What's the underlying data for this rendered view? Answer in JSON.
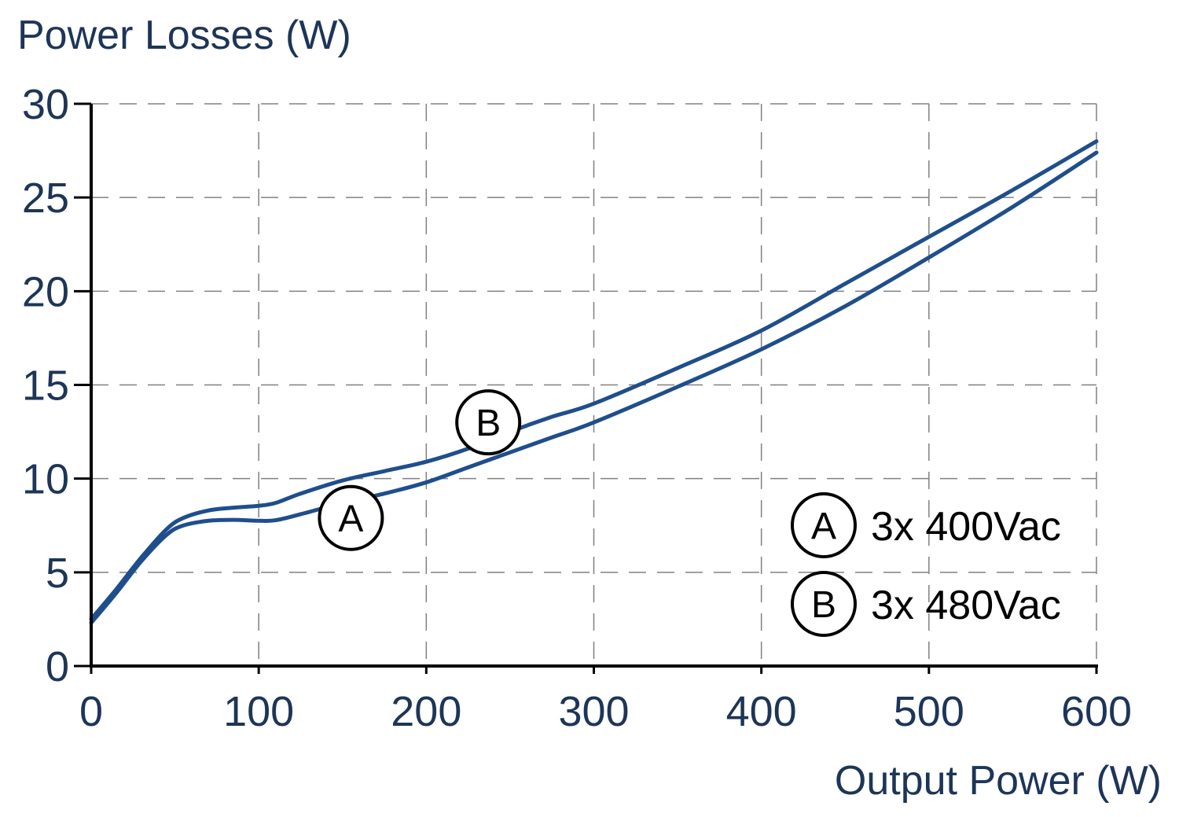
{
  "chart_data": {
    "type": "line",
    "ylabel": "Power Losses (W)",
    "xlabel": "Output Power (W)",
    "xlim": [
      0,
      600
    ],
    "ylim": [
      0,
      30
    ],
    "x_ticks": [
      0,
      100,
      200,
      300,
      400,
      500,
      600
    ],
    "x_tick_labels": [
      "0",
      "100",
      "200",
      "300",
      "400",
      "500",
      "600"
    ],
    "y_ticks": [
      0,
      5,
      10,
      15,
      20,
      25,
      30
    ],
    "y_tick_labels": [
      "0",
      "5",
      "10",
      "15",
      "20",
      "25",
      "30"
    ],
    "grid": true,
    "legend_position": "bottom-right",
    "colors": {
      "line": "#1f4e8c",
      "text": "#1d3557",
      "axis": "#000000",
      "grid": "#808080"
    },
    "series": [
      {
        "name": "3x 400Vac",
        "marker": "A",
        "label_at": [
          155,
          7.9
        ],
        "points": [
          [
            0,
            2.3
          ],
          [
            15,
            3.9
          ],
          [
            30,
            5.6
          ],
          [
            45,
            7.0
          ],
          [
            55,
            7.5
          ],
          [
            70,
            7.75
          ],
          [
            85,
            7.8
          ],
          [
            100,
            7.75
          ],
          [
            110,
            7.78
          ],
          [
            125,
            8.1
          ],
          [
            150,
            8.7
          ],
          [
            175,
            9.2
          ],
          [
            200,
            9.8
          ],
          [
            225,
            10.6
          ],
          [
            250,
            11.4
          ],
          [
            275,
            12.2
          ],
          [
            300,
            13.0
          ],
          [
            350,
            14.9
          ],
          [
            400,
            16.9
          ],
          [
            450,
            19.2
          ],
          [
            500,
            21.8
          ],
          [
            550,
            24.5
          ],
          [
            600,
            27.4
          ]
        ]
      },
      {
        "name": "3x 480Vac",
        "marker": "B",
        "label_at": [
          237,
          13.0
        ],
        "points": [
          [
            0,
            2.5
          ],
          [
            15,
            4.1
          ],
          [
            30,
            5.8
          ],
          [
            45,
            7.3
          ],
          [
            55,
            7.9
          ],
          [
            70,
            8.3
          ],
          [
            85,
            8.45
          ],
          [
            100,
            8.55
          ],
          [
            110,
            8.7
          ],
          [
            125,
            9.2
          ],
          [
            150,
            9.9
          ],
          [
            175,
            10.4
          ],
          [
            200,
            10.9
          ],
          [
            225,
            11.6
          ],
          [
            250,
            12.5
          ],
          [
            275,
            13.3
          ],
          [
            300,
            14.0
          ],
          [
            350,
            15.9
          ],
          [
            400,
            17.9
          ],
          [
            450,
            20.4
          ],
          [
            500,
            22.9
          ],
          [
            550,
            25.4
          ],
          [
            600,
            28.0
          ]
        ]
      }
    ]
  }
}
